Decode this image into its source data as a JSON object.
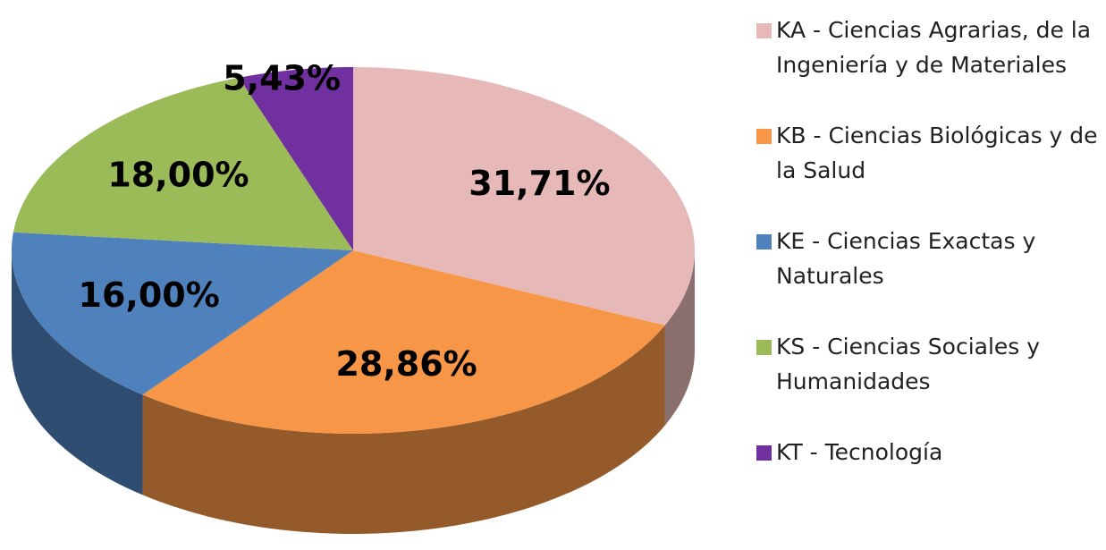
{
  "chart_data": {
    "type": "pie",
    "categories": [
      "KA - Ciencias Agrarias, de la Ingeniería y de Materiales",
      "KB - Ciencias Biológicas y de la Salud",
      "KE - Ciencias Exactas y Naturales",
      "KS - Ciencias Sociales y Humanidades",
      "KT - Tecnología"
    ],
    "values": [
      31.71,
      28.86,
      16.0,
      18.0,
      5.43
    ],
    "value_labels": [
      "31,71%",
      "28,86%",
      "16,00%",
      "18,00%",
      "5,43%"
    ],
    "colors": [
      "#e6b9b8",
      "#f79646",
      "#4f81bd",
      "#9bbb59",
      "#7030a0"
    ],
    "legend": "right"
  }
}
